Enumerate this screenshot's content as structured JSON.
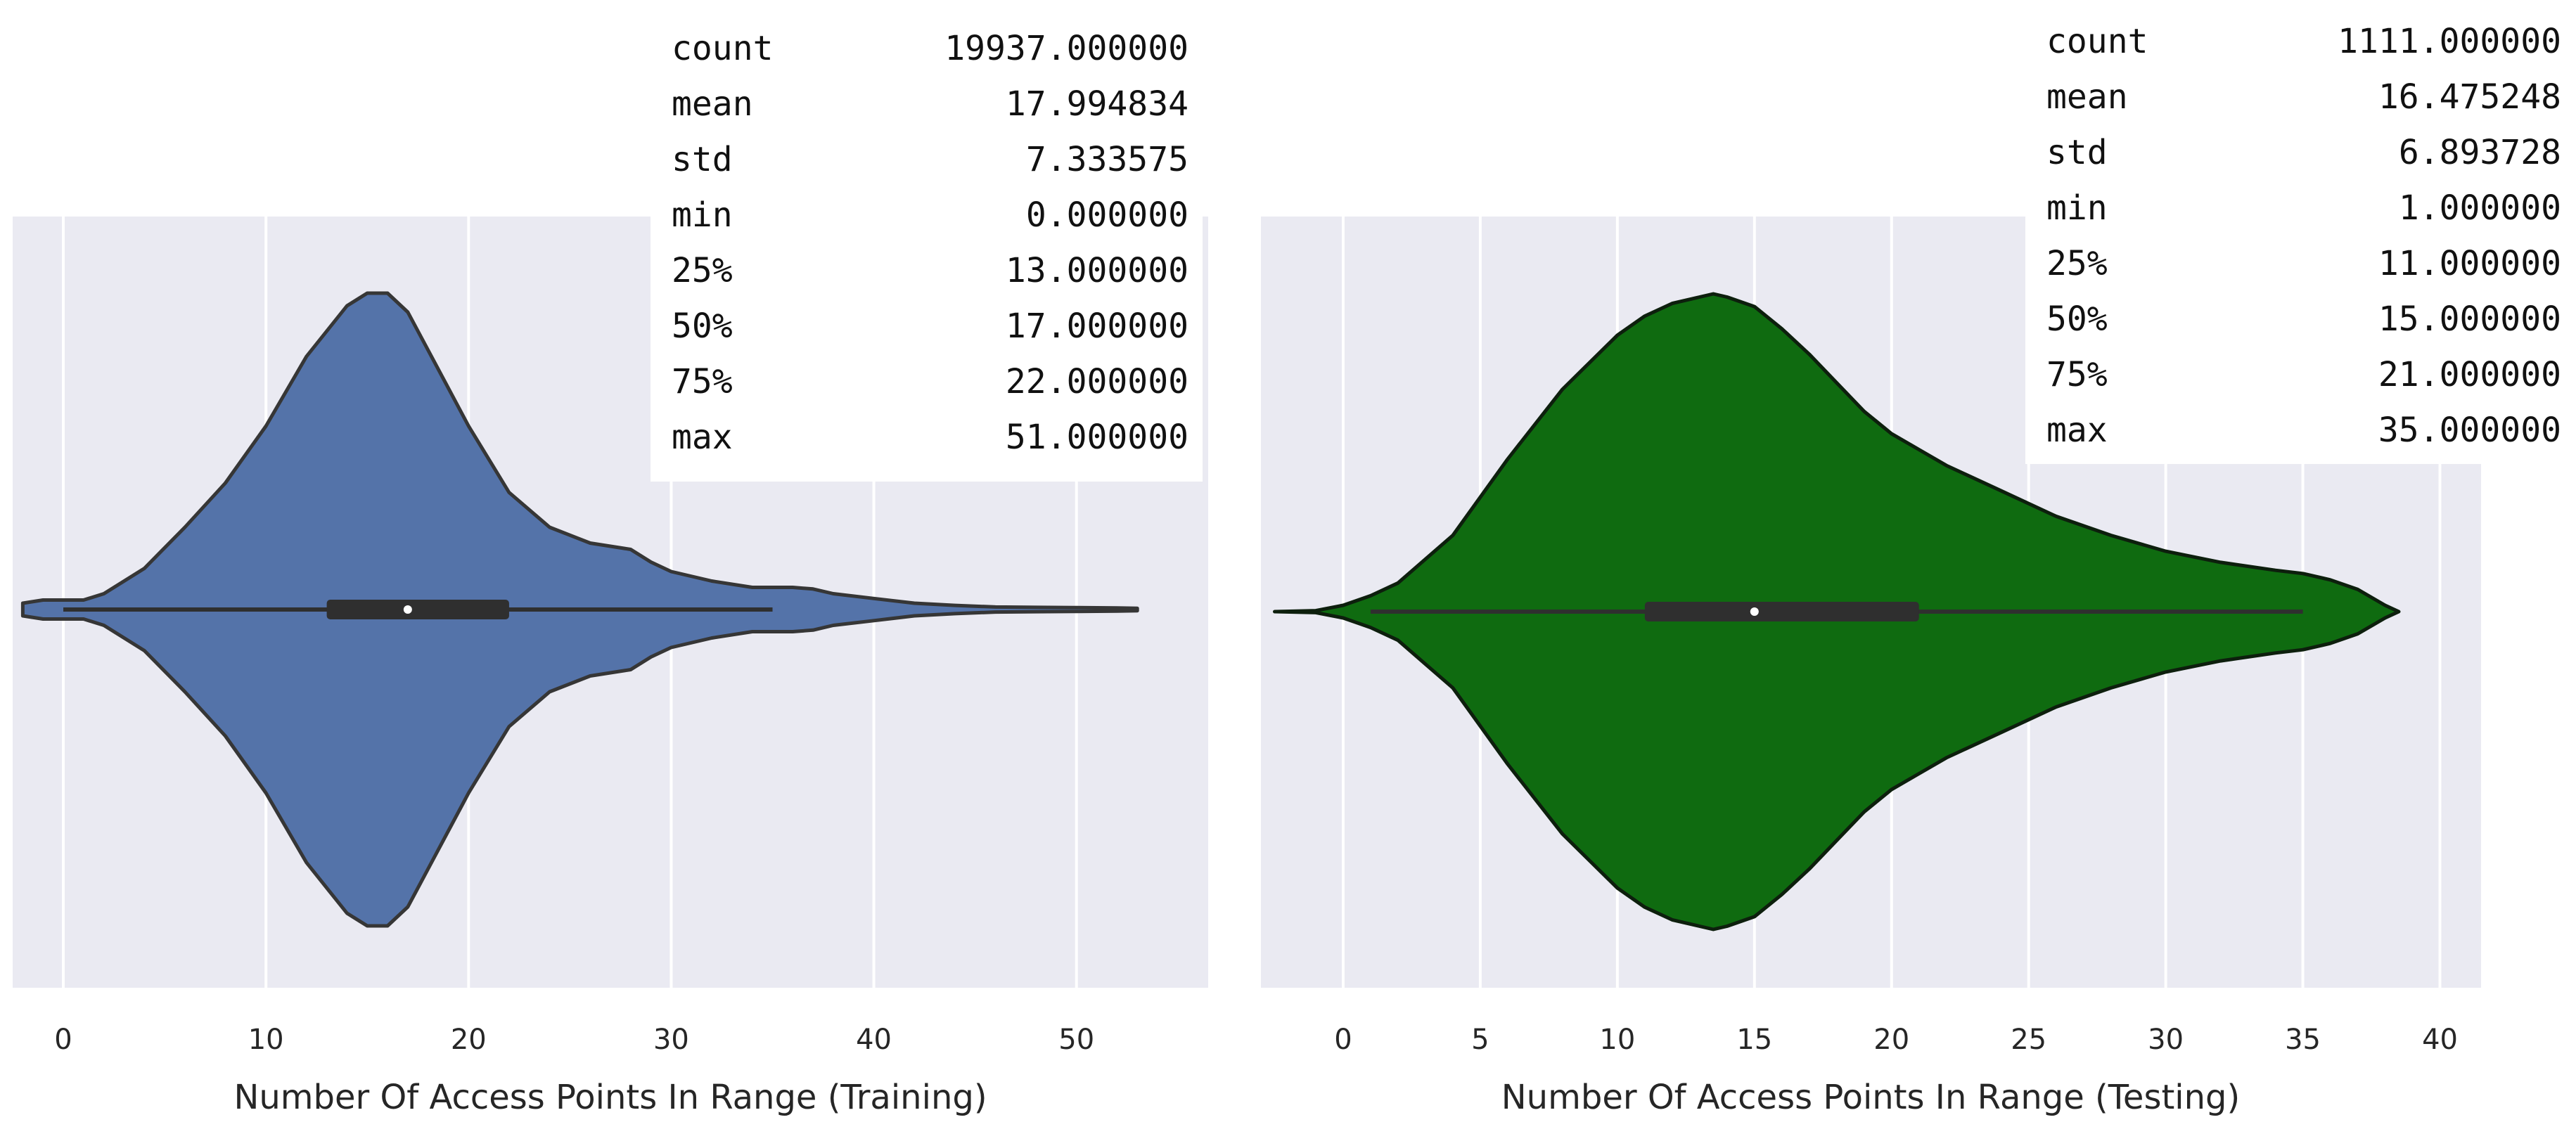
{
  "chart_data": [
    {
      "type": "violin",
      "xlabel": "Number Of Access Points In Range (Training)",
      "xlim": [
        -2.5,
        56.5
      ],
      "xticks": [
        0,
        10,
        20,
        30,
        40,
        50
      ],
      "color": "#5473a9",
      "outline": "#363636",
      "box": {
        "whisker_low": 0,
        "q1": 13,
        "median": 17,
        "q3": 22,
        "whisker_high": 35
      },
      "density_profile": [
        [
          -2,
          0.02
        ],
        [
          -1,
          0.03
        ],
        [
          0,
          0.03
        ],
        [
          1,
          0.03
        ],
        [
          2,
          0.05
        ],
        [
          4,
          0.13
        ],
        [
          6,
          0.26
        ],
        [
          8,
          0.4
        ],
        [
          10,
          0.58
        ],
        [
          12,
          0.8
        ],
        [
          14,
          0.96
        ],
        [
          15,
          1.0
        ],
        [
          16,
          1.0
        ],
        [
          17,
          0.94
        ],
        [
          18,
          0.82
        ],
        [
          20,
          0.58
        ],
        [
          22,
          0.37
        ],
        [
          24,
          0.26
        ],
        [
          26,
          0.21
        ],
        [
          27,
          0.2
        ],
        [
          28,
          0.19
        ],
        [
          29,
          0.15
        ],
        [
          30,
          0.12
        ],
        [
          32,
          0.09
        ],
        [
          34,
          0.07
        ],
        [
          35,
          0.07
        ],
        [
          36,
          0.07
        ],
        [
          37,
          0.065
        ],
        [
          38,
          0.05
        ],
        [
          40,
          0.035
        ],
        [
          42,
          0.02
        ],
        [
          44,
          0.013
        ],
        [
          46,
          0.008
        ],
        [
          48,
          0.007
        ],
        [
          50,
          0.006
        ],
        [
          52,
          0.005
        ],
        [
          53,
          0.004
        ]
      ],
      "stats": [
        {
          "label": "count",
          "value": "19937.000000"
        },
        {
          "label": "mean",
          "value": "17.994834"
        },
        {
          "label": "std",
          "value": "7.333575"
        },
        {
          "label": "min",
          "value": "0.000000"
        },
        {
          "label": "25%",
          "value": "13.000000"
        },
        {
          "label": "50%",
          "value": "17.000000"
        },
        {
          "label": "75%",
          "value": "22.000000"
        },
        {
          "label": "max",
          "value": "51.000000"
        }
      ]
    },
    {
      "type": "violin",
      "xlabel": "Number Of Access Points In Range (Testing)",
      "xlim": [
        -3,
        41.5
      ],
      "xticks": [
        0,
        5,
        10,
        15,
        20,
        25,
        30,
        35,
        40
      ],
      "color": "#0f6b10",
      "outline": "#0d1f0d",
      "box": {
        "whisker_low": 1,
        "q1": 11,
        "median": 15,
        "q3": 21,
        "whisker_high": 35
      },
      "density_profile": [
        [
          -2.5,
          0.0
        ],
        [
          -1,
          0.003
        ],
        [
          0,
          0.02
        ],
        [
          1,
          0.05
        ],
        [
          2,
          0.09
        ],
        [
          4,
          0.24
        ],
        [
          6,
          0.48
        ],
        [
          8,
          0.7
        ],
        [
          10,
          0.87
        ],
        [
          11,
          0.93
        ],
        [
          12,
          0.97
        ],
        [
          13,
          0.99
        ],
        [
          13.5,
          1.0
        ],
        [
          14,
          0.99
        ],
        [
          15,
          0.96
        ],
        [
          16,
          0.89
        ],
        [
          17,
          0.81
        ],
        [
          18,
          0.72
        ],
        [
          19,
          0.63
        ],
        [
          20,
          0.56
        ],
        [
          21,
          0.51
        ],
        [
          22,
          0.46
        ],
        [
          24,
          0.38
        ],
        [
          26,
          0.3
        ],
        [
          28,
          0.24
        ],
        [
          30,
          0.19
        ],
        [
          32,
          0.155
        ],
        [
          34,
          0.13
        ],
        [
          35,
          0.12
        ],
        [
          36,
          0.1
        ],
        [
          37,
          0.07
        ],
        [
          38,
          0.02
        ],
        [
          38.5,
          0.0
        ]
      ],
      "stats": [
        {
          "label": "count",
          "value": "1111.000000"
        },
        {
          "label": "mean",
          "value": "16.475248"
        },
        {
          "label": "std",
          "value": "6.893728"
        },
        {
          "label": "min",
          "value": "1.000000"
        },
        {
          "label": "25%",
          "value": "11.000000"
        },
        {
          "label": "50%",
          "value": "15.000000"
        },
        {
          "label": "75%",
          "value": "21.000000"
        },
        {
          "label": "max",
          "value": "35.000000"
        }
      ]
    }
  ]
}
